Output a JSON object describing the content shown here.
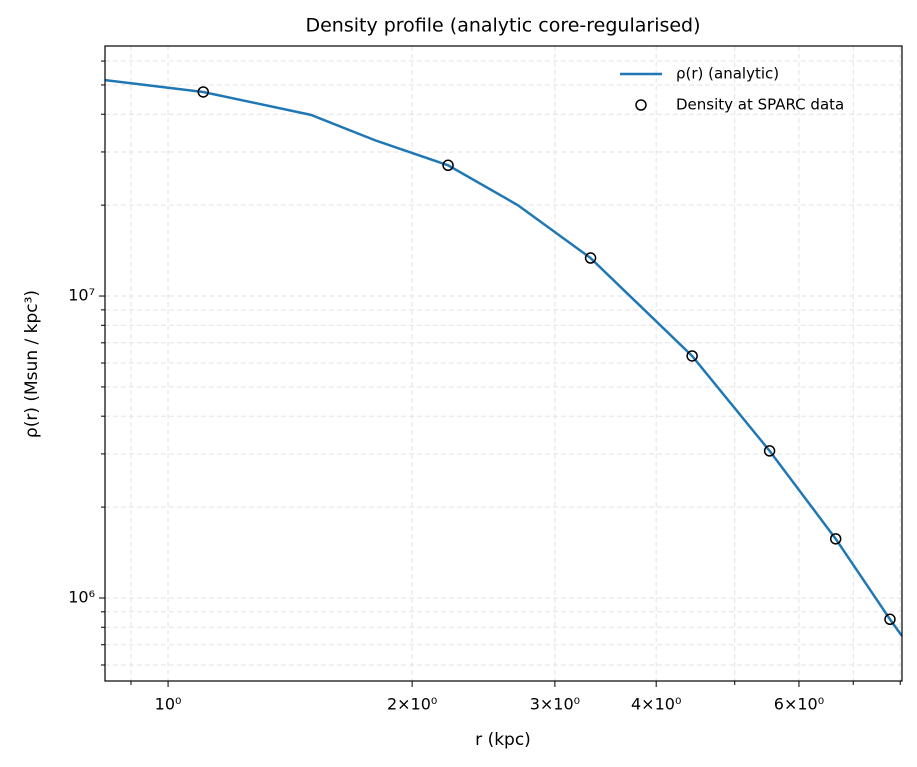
{
  "chart_data": {
    "type": "line",
    "title": "Density profile (analytic core-regularised)",
    "x_label": "r (kpc)",
    "y_label": "ρ(r) (Msun / kpc³)",
    "xscale": "log",
    "yscale": "log",
    "grid": true,
    "legend": "upper right",
    "xlim": [
      0.836,
      8.04
    ],
    "ylim": [
      531000,
      67300000
    ],
    "xticks": [
      {
        "value": 1,
        "label": "10⁰"
      },
      {
        "value": 2,
        "label": "2×10⁰"
      },
      {
        "value": 3,
        "label": "3×10⁰"
      },
      {
        "value": 4,
        "label": "4×10⁰"
      },
      {
        "value": 6,
        "label": "6×10⁰"
      }
    ],
    "xminorticks": [
      0.9,
      5,
      7,
      8
    ],
    "yticks": [
      {
        "value": 1000000,
        "label": "10⁶"
      },
      {
        "value": 10000000,
        "label": "10⁷"
      }
    ],
    "yminorticks": [
      600000,
      700000,
      800000,
      900000,
      2000000,
      3000000,
      4000000,
      5000000,
      6000000,
      7000000,
      8000000,
      9000000,
      20000000,
      30000000,
      40000000,
      50000000,
      60000000
    ],
    "series": [
      {
        "name": "ρ(r) (analytic)",
        "type": "line",
        "color": "#1f77b4",
        "x": [
          0.836,
          1.105,
          1.5,
          1.8,
          2.215,
          2.7,
          3.32,
          4.43,
          5.52,
          6.66,
          7.77,
          8.04
        ],
        "values": [
          51900000,
          47400000,
          39800000,
          32800000,
          27100000,
          20000000,
          13360000,
          6330000,
          3070000,
          1570000,
          850000,
          748000
        ]
      },
      {
        "name": "Density at SPARC data",
        "type": "scatter",
        "color": "#000000",
        "x": [
          1.105,
          2.215,
          3.32,
          4.43,
          5.52,
          6.66,
          7.77
        ],
        "values": [
          47400000,
          27100000,
          13360000,
          6330000,
          3070000,
          1570000,
          850000
        ]
      }
    ]
  }
}
